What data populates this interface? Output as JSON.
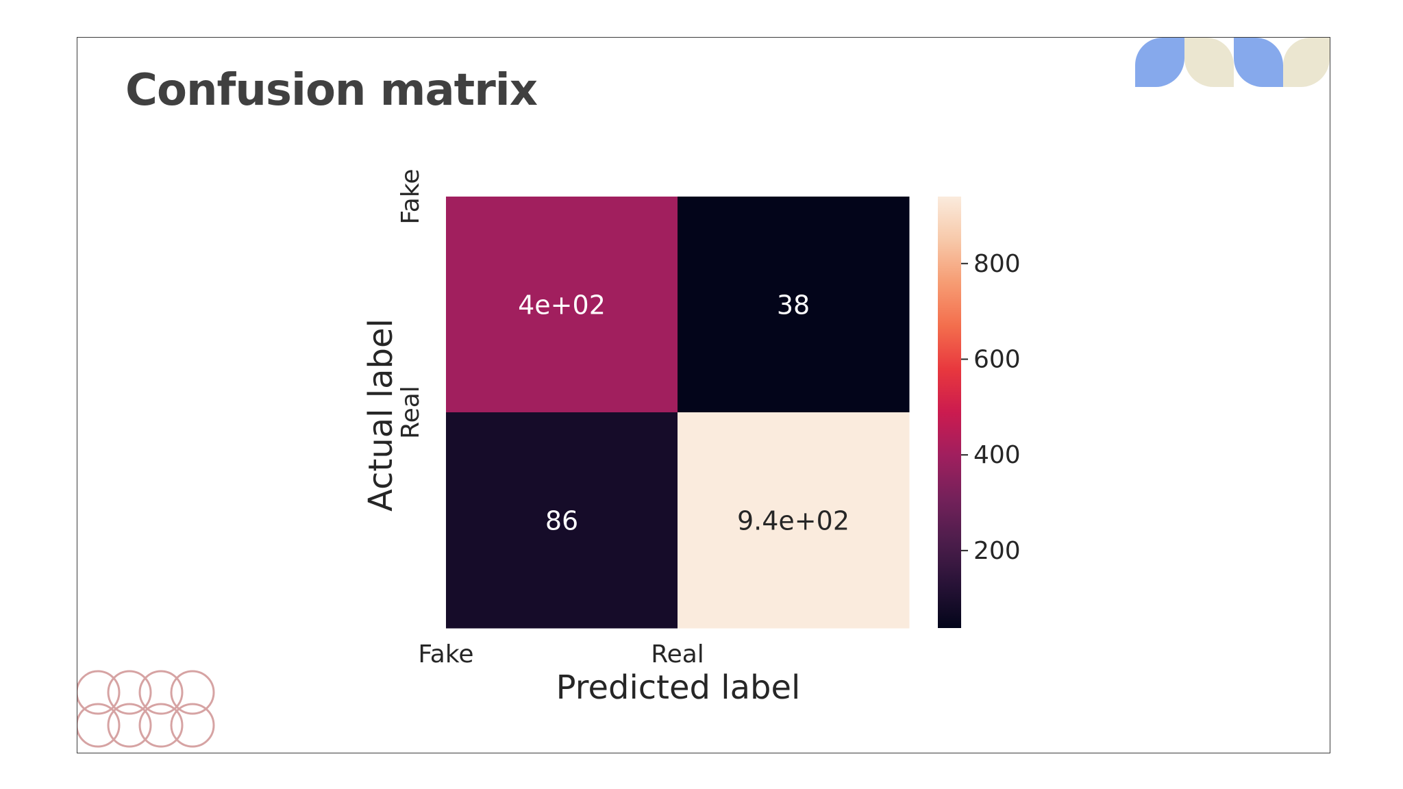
{
  "slide": {
    "title": "Confusion matrix"
  },
  "colors": {
    "frame_border": "#3a3a3a",
    "title": "#404040",
    "deco_blue": "#86a9ec",
    "deco_cream": "#ebe6d0",
    "deco_rings": "#d6a3a3",
    "cell_text_light": "#ffffff",
    "cell_text_dark": "#262626",
    "axis_text": "#262626"
  },
  "decorations": {
    "top_right": "blue-and-cream-petal-shapes",
    "bottom_left": "interlocking-pink-rings"
  },
  "chart_data": {
    "type": "heatmap",
    "title": "",
    "xlabel": "Predicted label",
    "ylabel": "Actual label",
    "x_categories": [
      "Fake",
      "Real"
    ],
    "y_categories": [
      "Fake",
      "Real"
    ],
    "values": [
      [
        400,
        38
      ],
      [
        86,
        940
      ]
    ],
    "annotations": [
      [
        "4e+02",
        "38"
      ],
      [
        "86",
        "9.4e+02"
      ]
    ],
    "colormap": "rocket",
    "colorbar": {
      "range": [
        38,
        940
      ],
      "ticks": [
        200,
        400,
        600,
        800
      ],
      "tick_labels": [
        "200",
        "400",
        "600",
        "800"
      ]
    }
  }
}
